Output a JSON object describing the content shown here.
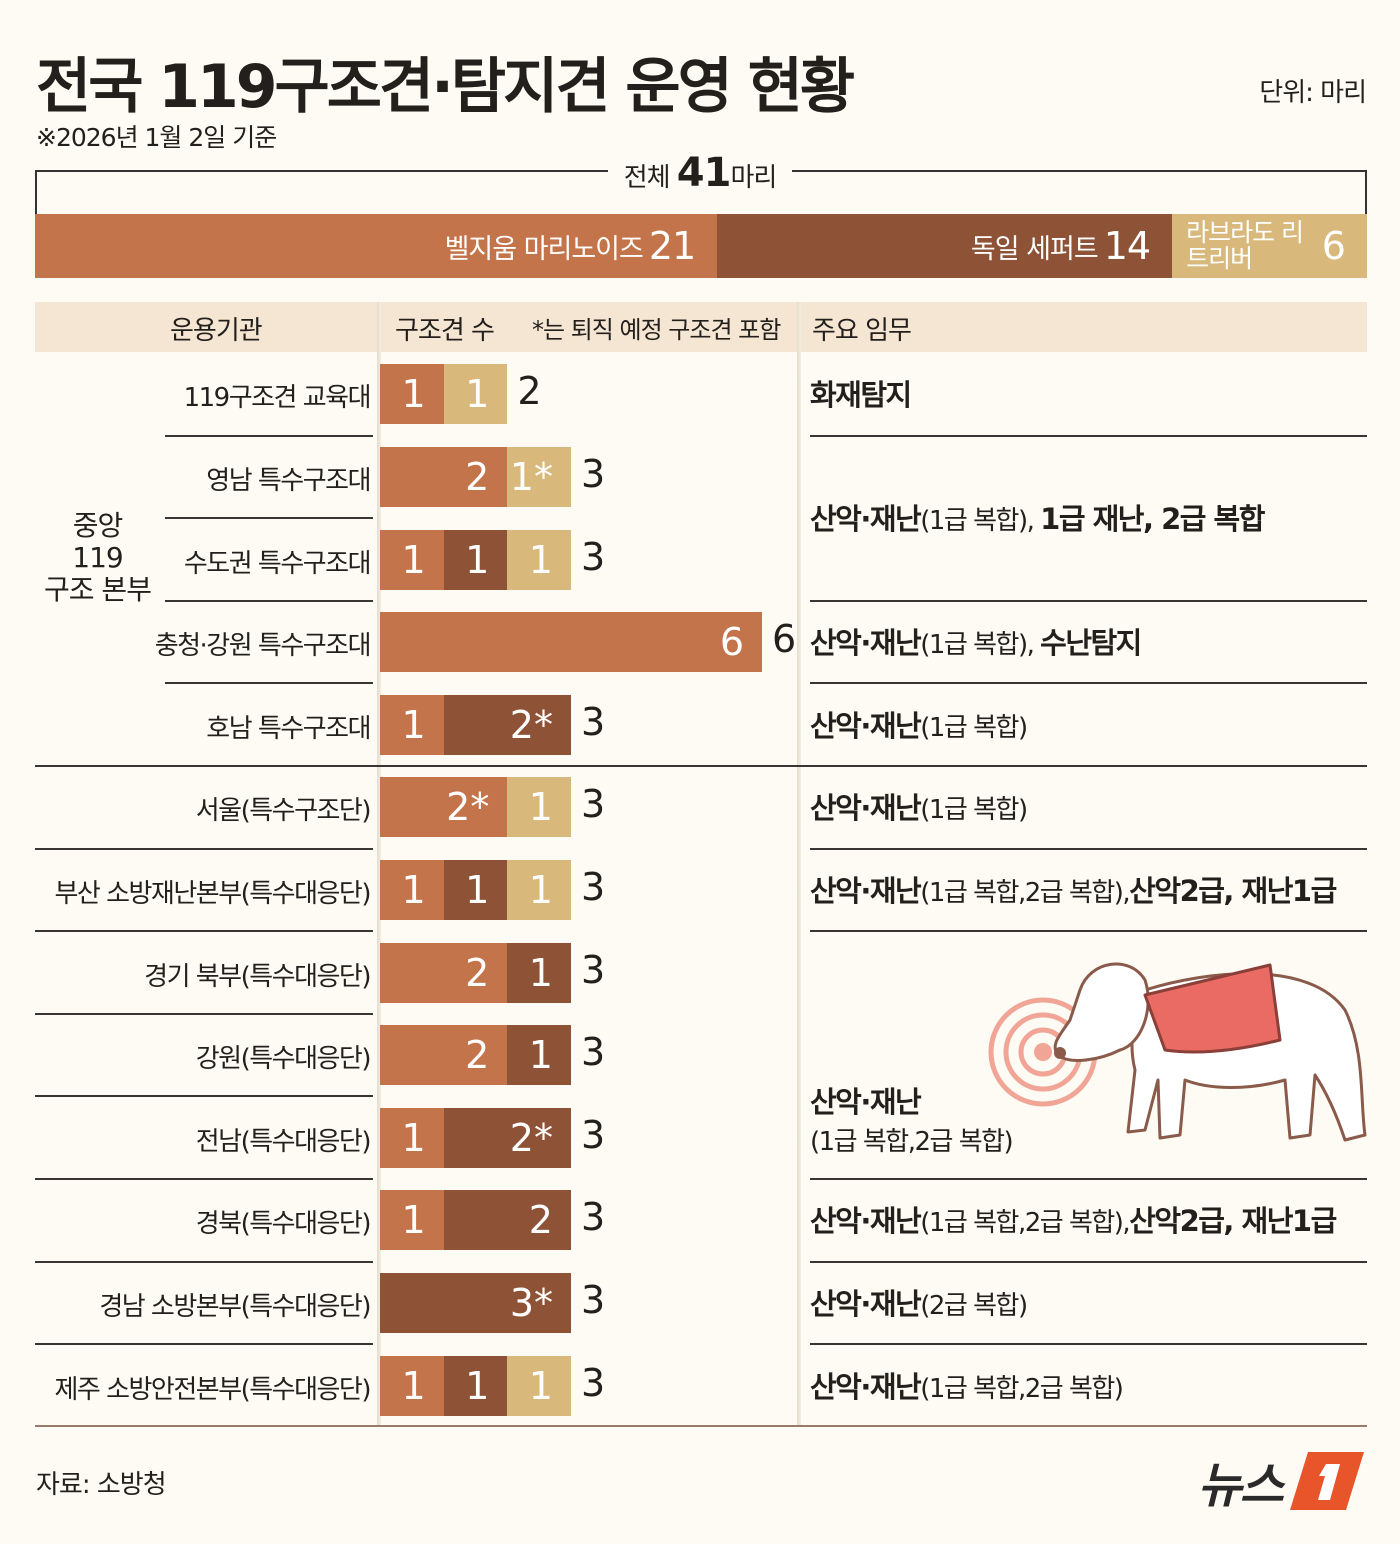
{
  "title": "전국 119구조견·탐지견 운영 현황",
  "subtitle": "※2026년 1월 2일 기준",
  "unit": "단위: 마리",
  "total": {
    "prefix": "전체",
    "value": "41",
    "suffix": "마리"
  },
  "colors": {
    "malinois": "#c4744a",
    "shepherd": "#8e5336",
    "labrador": "#d9b87c",
    "background": "#fdfbf3",
    "header": "#f5e6d3"
  },
  "chart_data": {
    "type": "bar",
    "stacked": true,
    "title": "전국 119구조견·탐지견 운영 현황",
    "note": "*는 퇴직 예정 구조견 포함",
    "breeds": [
      {
        "name": "벨지움 마리노이즈",
        "total": 21,
        "color": "#c4744a"
      },
      {
        "name": "독일 세퍼트",
        "total": 14,
        "color": "#8e5336"
      },
      {
        "name": "라브라도 리트리버",
        "total": 6,
        "color": "#d9b87c"
      }
    ],
    "rows": [
      {
        "org": "119구조견 교육대",
        "segments": [
          {
            "breed": 0,
            "value": 1,
            "label": "1"
          },
          {
            "breed": 2,
            "value": 1,
            "label": "1"
          }
        ],
        "total": 2
      },
      {
        "org": "영남 특수구조대",
        "segments": [
          {
            "breed": 0,
            "value": 2,
            "label": "2"
          },
          {
            "breed": 2,
            "value": 1,
            "label": "1*"
          }
        ],
        "total": 3
      },
      {
        "org": "수도권 특수구조대",
        "segments": [
          {
            "breed": 0,
            "value": 1,
            "label": "1"
          },
          {
            "breed": 1,
            "value": 1,
            "label": "1"
          },
          {
            "breed": 2,
            "value": 1,
            "label": "1"
          }
        ],
        "total": 3
      },
      {
        "org": "충청·강원 특수구조대",
        "segments": [
          {
            "breed": 0,
            "value": 6,
            "label": "6"
          }
        ],
        "total": 6
      },
      {
        "org": "호남 특수구조대",
        "segments": [
          {
            "breed": 0,
            "value": 1,
            "label": "1"
          },
          {
            "breed": 1,
            "value": 2,
            "label": "2*"
          }
        ],
        "total": 3
      },
      {
        "org": "서울(특수구조단)",
        "segments": [
          {
            "breed": 0,
            "value": 2,
            "label": "2*"
          },
          {
            "breed": 2,
            "value": 1,
            "label": "1"
          }
        ],
        "total": 3
      },
      {
        "org": "부산 소방재난본부(특수대응단)",
        "segments": [
          {
            "breed": 0,
            "value": 1,
            "label": "1"
          },
          {
            "breed": 1,
            "value": 1,
            "label": "1"
          },
          {
            "breed": 2,
            "value": 1,
            "label": "1"
          }
        ],
        "total": 3
      },
      {
        "org": "경기 북부(특수대응단)",
        "segments": [
          {
            "breed": 0,
            "value": 2,
            "label": "2"
          },
          {
            "breed": 1,
            "value": 1,
            "label": "1"
          }
        ],
        "total": 3
      },
      {
        "org": "강원(특수대응단)",
        "segments": [
          {
            "breed": 0,
            "value": 2,
            "label": "2"
          },
          {
            "breed": 1,
            "value": 1,
            "label": "1"
          }
        ],
        "total": 3
      },
      {
        "org": "전남(특수대응단)",
        "segments": [
          {
            "breed": 0,
            "value": 1,
            "label": "1"
          },
          {
            "breed": 1,
            "value": 2,
            "label": "2*"
          }
        ],
        "total": 3
      },
      {
        "org": "경북(특수대응단)",
        "segments": [
          {
            "breed": 0,
            "value": 1,
            "label": "1"
          },
          {
            "breed": 1,
            "value": 2,
            "label": "2"
          }
        ],
        "total": 3
      },
      {
        "org": "경남 소방본부(특수대응단)",
        "segments": [
          {
            "breed": 1,
            "value": 3,
            "label": "3*"
          }
        ],
        "total": 3
      },
      {
        "org": "제주 소방안전본부(특수대응단)",
        "segments": [
          {
            "breed": 0,
            "value": 1,
            "label": "1"
          },
          {
            "breed": 1,
            "value": 1,
            "label": "1"
          },
          {
            "breed": 2,
            "value": 1,
            "label": "1"
          }
        ],
        "total": 3
      }
    ],
    "xlim": [
      0,
      6
    ]
  },
  "header": {
    "org": "운용기관",
    "count": "구조견 수",
    "note": "*는 퇴직 예정 구조견 포함",
    "mission": "주요 임무"
  },
  "group_label": [
    "중앙",
    "119",
    "구조 본부"
  ],
  "missions": [
    {
      "rows": [
        0
      ],
      "parts": [
        {
          "t": "화재탐지",
          "b": true
        }
      ]
    },
    {
      "rows": [
        1,
        2
      ],
      "parts": [
        {
          "t": "산악·재난",
          "b": true
        },
        {
          "t": "(1급 복합), ",
          "b": false
        },
        {
          "t": "1급 재난, 2급 복합",
          "b": true
        }
      ]
    },
    {
      "rows": [
        3
      ],
      "parts": [
        {
          "t": "산악·재난",
          "b": true
        },
        {
          "t": "(1급 복합), ",
          "b": false
        },
        {
          "t": "수난탐지",
          "b": true
        }
      ]
    },
    {
      "rows": [
        4
      ],
      "parts": [
        {
          "t": "산악·재난",
          "b": true
        },
        {
          "t": "(1급 복합)",
          "b": false
        }
      ]
    },
    {
      "rows": [
        5
      ],
      "parts": [
        {
          "t": "산악·재난",
          "b": true
        },
        {
          "t": "(1급 복합)",
          "b": false
        }
      ]
    },
    {
      "rows": [
        6
      ],
      "parts": [
        {
          "t": "산악·재난",
          "b": true
        },
        {
          "t": "(1급 복합,2급 복합),",
          "b": false
        },
        {
          "t": "산악2급, 재난1급",
          "b": true
        }
      ]
    },
    {
      "rows": [
        7,
        8,
        9
      ],
      "parts": [
        {
          "t": "산악·재난",
          "b": true
        },
        {
          "t": "(1급 복합,2급 복합)",
          "b": false,
          "br": true
        }
      ]
    },
    {
      "rows": [
        10
      ],
      "parts": [
        {
          "t": "산악·재난",
          "b": true
        },
        {
          "t": "(1급 복합,2급 복합),",
          "b": false
        },
        {
          "t": "산악2급, 재난1급",
          "b": true
        }
      ]
    },
    {
      "rows": [
        11
      ],
      "parts": [
        {
          "t": "산악·재난",
          "b": true
        },
        {
          "t": "(2급 복합)",
          "b": false
        }
      ]
    },
    {
      "rows": [
        12
      ],
      "parts": [
        {
          "t": "산악·재난",
          "b": true
        },
        {
          "t": "(1급 복합,2급 복합)",
          "b": false
        }
      ]
    }
  ],
  "source": "자료: 소방청",
  "logo": "뉴스1"
}
